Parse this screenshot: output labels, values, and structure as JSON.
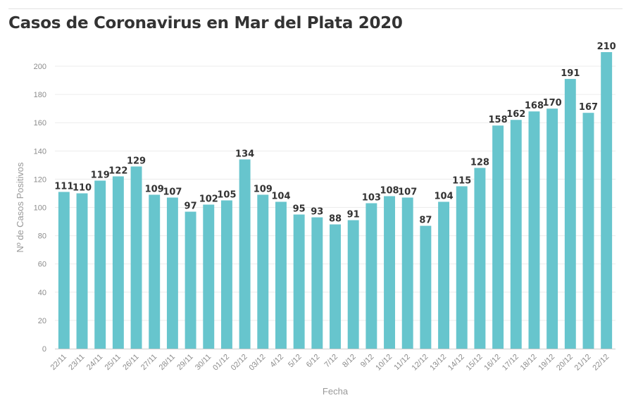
{
  "chart_data": {
    "type": "bar",
    "title": "Casos de Coronavirus en Mar del Plata 2020",
    "xlabel": "Fecha",
    "ylabel": "Nº de Casos Positivos",
    "ylim": [
      0,
      210
    ],
    "yticks": [
      0,
      20,
      40,
      60,
      80,
      100,
      120,
      140,
      160,
      180,
      200
    ],
    "grid": true,
    "bar_color": "#67c5cd",
    "categories": [
      "22/11",
      "23/11",
      "24/11",
      "25/11",
      "26/11",
      "27/11",
      "28/11",
      "29/11",
      "30/11",
      "01/12",
      "02/12",
      "03/12",
      "4/12",
      "5/12",
      "6/12",
      "7/12",
      "8/12",
      "9/12",
      "10/12",
      "11/12",
      "12/12",
      "13/12",
      "14/12",
      "15/12",
      "16/12",
      "17/12",
      "18/12",
      "19/12",
      "20/12",
      "21/12",
      "22/12"
    ],
    "values": [
      111,
      110,
      119,
      122,
      129,
      109,
      107,
      97,
      102,
      105,
      134,
      109,
      104,
      95,
      93,
      88,
      91,
      103,
      108,
      107,
      87,
      104,
      115,
      128,
      158,
      162,
      168,
      170,
      191,
      167,
      210
    ]
  }
}
